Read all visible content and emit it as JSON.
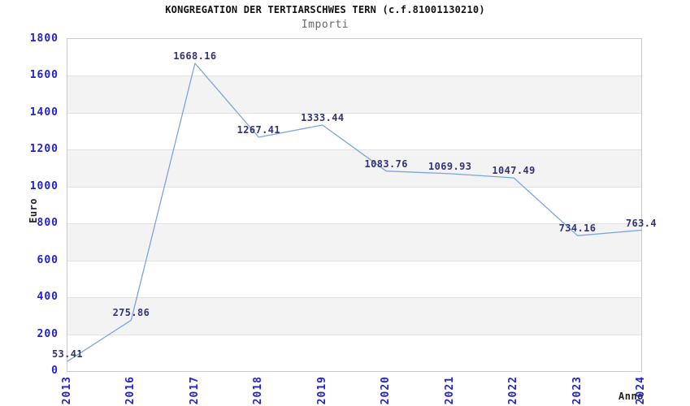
{
  "chart_data": {
    "type": "line",
    "title": "KONGREGATION DER TERTIARSCHWES TERN (c.f.81001130210)",
    "subtitle": "Importi",
    "xlabel": "Anno",
    "ylabel": "Euro",
    "categories": [
      "2013",
      "2016",
      "2017",
      "2018",
      "2019",
      "2020",
      "2021",
      "2022",
      "2023",
      "2024"
    ],
    "values": [
      53.41,
      275.86,
      1668.16,
      1267.41,
      1333.44,
      1083.76,
      1069.93,
      1047.49,
      734.16,
      763.4
    ],
    "point_labels": [
      "53.41",
      "275.86",
      "1668.16",
      "1267.41",
      "1333.44",
      "1083.76",
      "1069.93",
      "1047.49",
      "734.16",
      "763.4"
    ],
    "ylim": [
      0,
      1800
    ],
    "ytick_step": 200,
    "yticks": [
      0,
      200,
      400,
      600,
      800,
      1000,
      1200,
      1400,
      1600,
      1800
    ],
    "grid": "horizontal-alternating-bands",
    "legend": "none",
    "colors": {
      "line": "#7aa5dd",
      "tick_label": "#2222cc",
      "point_label": "#333377",
      "band_gray": "#f3f3f3",
      "gridline": "#e2e2e2",
      "plot_border": "#c9c9c9",
      "axis_label": "#222222",
      "title": "#111111",
      "subtitle": "#666666"
    }
  }
}
